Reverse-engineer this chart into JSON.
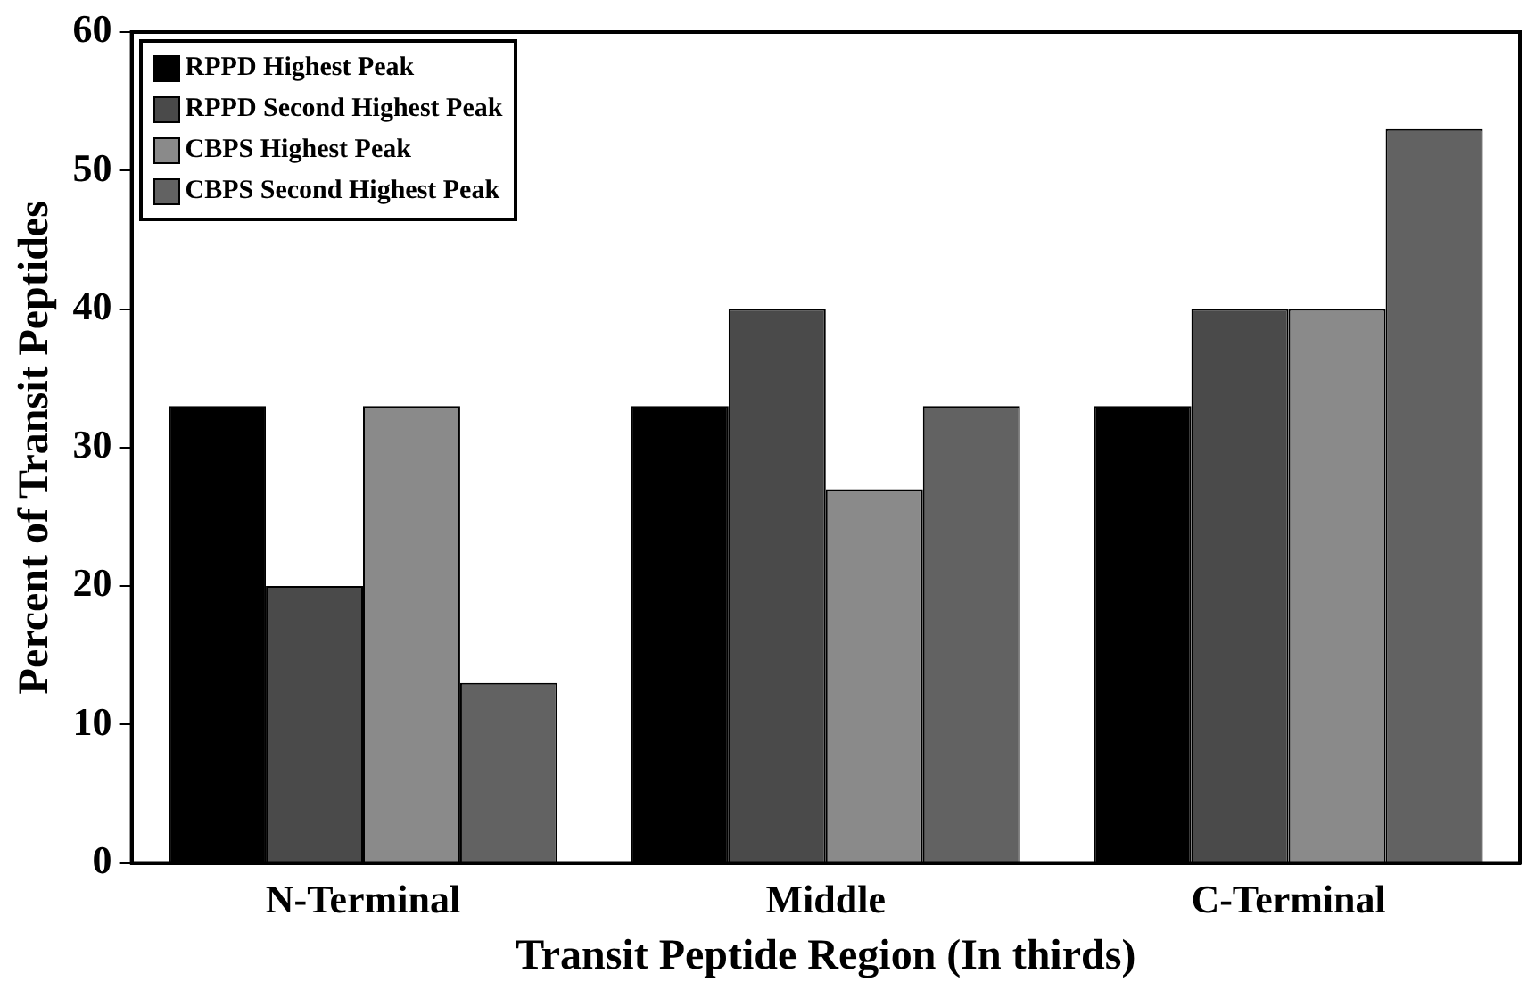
{
  "chart_data": {
    "type": "bar",
    "xlabel": "Transit Peptide Region (In thirds)",
    "ylabel": "Percent of Transit Peptides",
    "categories": [
      "N-Terminal",
      "Middle",
      "C-Terminal"
    ],
    "series": [
      {
        "name": "RPPD Highest Peak",
        "color": "#000000",
        "values": [
          33,
          33,
          33
        ]
      },
      {
        "name": "RPPD Second Highest Peak",
        "color": "#4a4a4a",
        "values": [
          20,
          40,
          40
        ]
      },
      {
        "name": "CBPS Highest Peak",
        "color": "#8a8a8a",
        "values": [
          33,
          27,
          40
        ]
      },
      {
        "name": "CBPS Second Highest Peak",
        "color": "#626262",
        "values": [
          13,
          33,
          53
        ]
      }
    ],
    "ylim": [
      0,
      60
    ],
    "yticks": [
      0,
      10,
      20,
      30,
      40,
      50,
      60
    ],
    "grid": false,
    "legend": "top left"
  }
}
